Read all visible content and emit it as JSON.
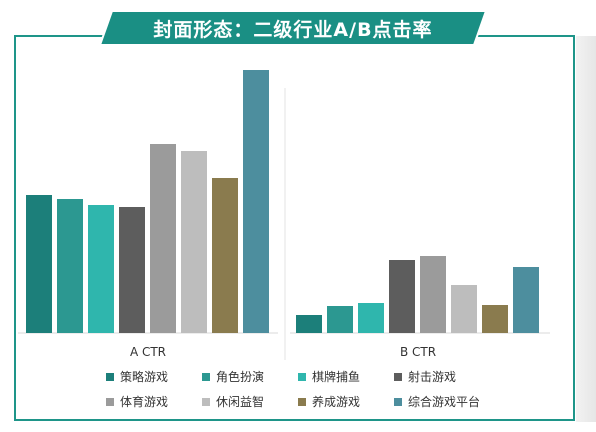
{
  "title": "封面形态：二级行业A/B点击率",
  "colors": {
    "accent": "#1e9589",
    "banner": "#1a8f84"
  },
  "chart_data": [
    {
      "type": "bar",
      "xlabel": "A CTR",
      "categories": [
        "策略游戏",
        "角色扮演",
        "棋牌捕鱼",
        "射击游戏",
        "体育游戏",
        "休闲益智",
        "养成游戏",
        "综合游戏平台"
      ],
      "values": [
        138,
        134,
        128,
        126,
        189,
        182,
        155,
        263
      ],
      "colors": [
        "#1c7f7a",
        "#2c9891",
        "#2fb6ad",
        "#5d5d5d",
        "#9b9b9b",
        "#bdbdbd",
        "#8a7b4e",
        "#4d8e9e"
      ],
      "ylim": [
        0,
        270
      ],
      "grid": false
    },
    {
      "type": "bar",
      "xlabel": "B CTR",
      "categories": [
        "策略游戏",
        "角色扮演",
        "棋牌捕鱼",
        "射击游戏",
        "体育游戏",
        "休闲益智",
        "养成游戏",
        "综合游戏平台"
      ],
      "values": [
        18,
        27,
        30,
        73,
        77,
        48,
        28,
        66
      ],
      "colors": [
        "#1c7f7a",
        "#2c9891",
        "#2fb6ad",
        "#5d5d5d",
        "#9b9b9b",
        "#bdbdbd",
        "#8a7b4e",
        "#4d8e9e"
      ],
      "ylim": [
        0,
        270
      ],
      "grid": false
    }
  ],
  "legend": [
    {
      "label": "策略游戏",
      "color": "#1c7f7a"
    },
    {
      "label": "角色扮演",
      "color": "#2c9891"
    },
    {
      "label": "棋牌捕鱼",
      "color": "#2fb6ad"
    },
    {
      "label": "射击游戏",
      "color": "#5d5d5d"
    },
    {
      "label": "体育游戏",
      "color": "#9b9b9b"
    },
    {
      "label": "休闲益智",
      "color": "#bdbdbd"
    },
    {
      "label": "养成游戏",
      "color": "#8a7b4e"
    },
    {
      "label": "综合游戏平台",
      "color": "#4d8e9e"
    }
  ]
}
